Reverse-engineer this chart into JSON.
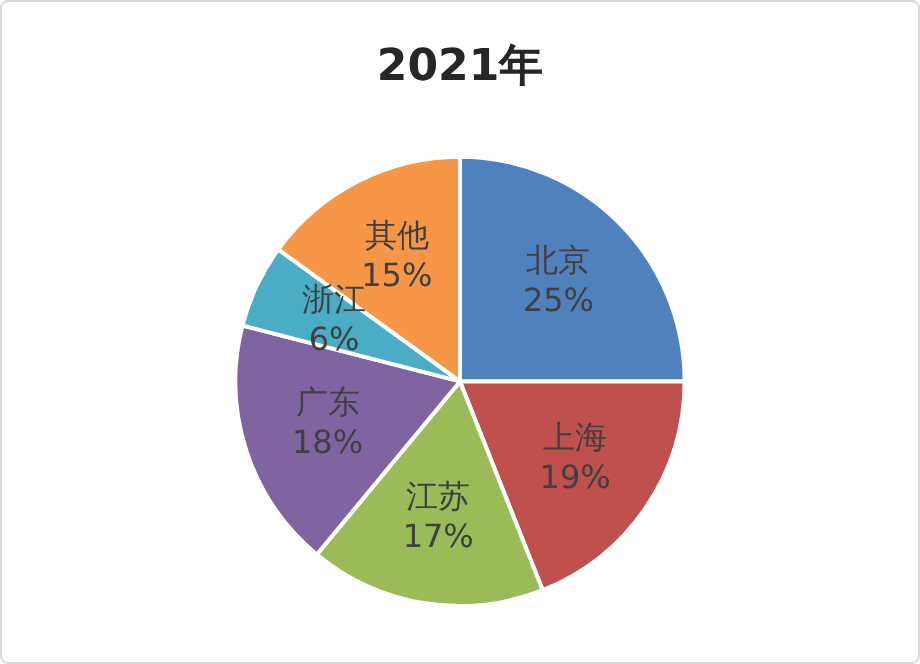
{
  "chart_data": {
    "type": "pie",
    "title": "2021年",
    "categories": [
      "北京",
      "上海",
      "江苏",
      "广东",
      "浙江",
      "其他"
    ],
    "values": [
      25,
      19,
      17,
      18,
      6,
      15
    ],
    "value_labels": [
      "25%",
      "19%",
      "17%",
      "18%",
      "6%",
      "15%"
    ],
    "colors": [
      "#4f81bd",
      "#c0504d",
      "#9bbb59",
      "#8064a2",
      "#4bacc6",
      "#f79646"
    ],
    "legend": false
  }
}
